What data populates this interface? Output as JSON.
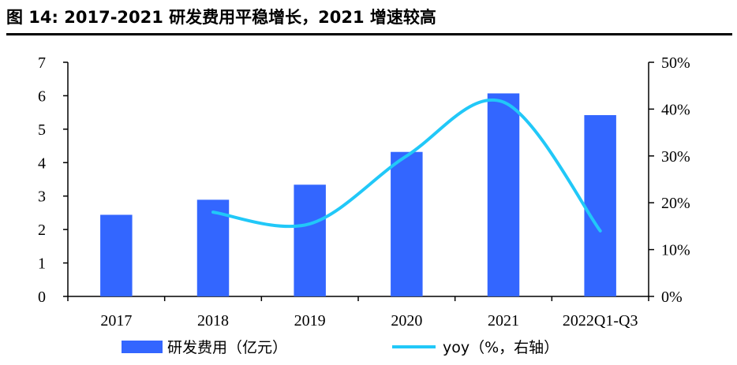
{
  "title": "图 14: 2017-2021 研发费用平稳增长，2021 增速较高",
  "chart_data": {
    "type": "bar",
    "categories": [
      "2017",
      "2018",
      "2019",
      "2020",
      "2021",
      "2022Q1-Q3"
    ],
    "series": [
      {
        "name": "研发费用（亿元）",
        "type": "bar",
        "axis": "left",
        "color": "#3366FF",
        "values": [
          2.44,
          2.89,
          3.34,
          4.32,
          6.07,
          5.42
        ]
      },
      {
        "name": "yoy（%，右轴）",
        "type": "line",
        "axis": "right",
        "color": "#21C8F8",
        "values": [
          null,
          18,
          15.5,
          30,
          41.5,
          14
        ]
      }
    ],
    "ylim": [
      0,
      7
    ],
    "y_ticks": [
      "0",
      "1",
      "2",
      "3",
      "4",
      "5",
      "6",
      "7"
    ],
    "y2lim": [
      0,
      50
    ],
    "y2_ticks": [
      "0%",
      "10%",
      "20%",
      "30%",
      "40%",
      "50%"
    ],
    "legend_position": "bottom",
    "grid": false
  }
}
